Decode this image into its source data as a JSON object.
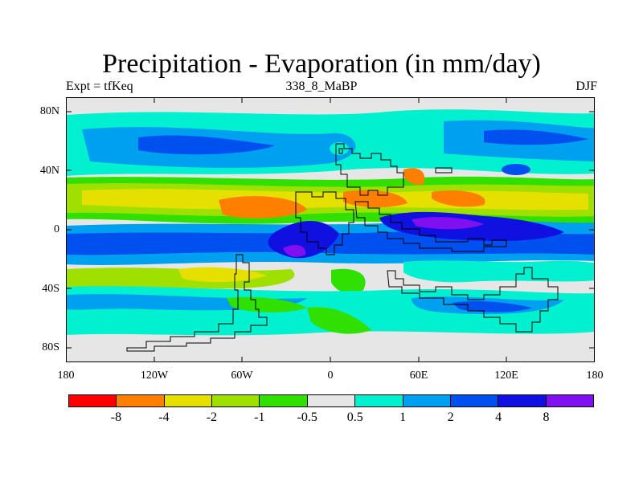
{
  "title": "Precipitation - Evaporation (in mm/day)",
  "left_string": "Expt = tfKeq",
  "center_string": "338_8_MaBP",
  "right_string": "DJF",
  "map": {
    "lat_ticks": [
      "80N",
      "40N",
      "0",
      "40S",
      "80S"
    ],
    "lon_ticks": [
      "180",
      "120W",
      "60W",
      "0",
      "60E",
      "120E",
      "180"
    ],
    "background_color": "#e6e6e6"
  },
  "colorbar": {
    "colors": [
      "#ff0000",
      "#ff8000",
      "#e6e000",
      "#a0e000",
      "#30e000",
      "#e6e6e6",
      "#00f0d0",
      "#00a0f0",
      "#0050f0",
      "#1010e0",
      "#8010f0"
    ],
    "labels": [
      "-8",
      "-4",
      "-2",
      "-1",
      "-0.5",
      "0.5",
      "1",
      "2",
      "4",
      "8"
    ]
  }
}
